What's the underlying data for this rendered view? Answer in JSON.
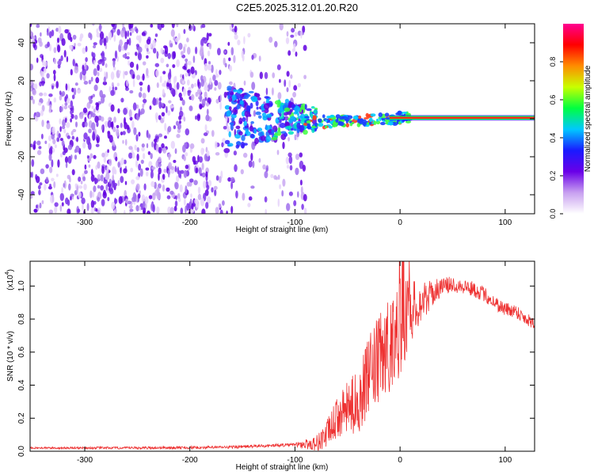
{
  "chart_data": [
    {
      "type": "heatmap",
      "title": "C2E5.2025.312.01.20.R20",
      "xlabel": "Height of straight line (km)",
      "ylabel": "Frequency (Hz)",
      "xlim": [
        -352,
        128
      ],
      "ylim": [
        -50,
        50
      ],
      "xticks": [
        -300,
        -200,
        -100,
        0,
        100
      ],
      "xtick_labels": [
        "-300",
        "-200",
        "-100",
        "0",
        "100"
      ],
      "yticks": [
        -40,
        -20,
        0,
        20,
        40
      ],
      "ytick_labels": [
        "-40",
        "-20",
        "0",
        "20",
        "40"
      ],
      "colorbar": {
        "label": "Normalized spectral amplitude",
        "range": [
          0,
          1
        ],
        "ticks": [
          0.0,
          0.2,
          0.4,
          0.6,
          0.8
        ],
        "tick_labels": [
          "0.0",
          "0.2",
          "0.4",
          "0.6",
          "0.8"
        ],
        "colors": [
          "#ffffff",
          "#c8a0f0",
          "#6a00e8",
          "#1a1aff",
          "#00c8ff",
          "#00ff40",
          "#c8ff00",
          "#ff8c00",
          "#ff0000",
          "#ff0090"
        ]
      },
      "features": {
        "noise_region_x": [
          -352,
          -90
        ],
        "spread_region_x": [
          -150,
          -80
        ],
        "carrier_line_from_x": -10,
        "carrier_frequency_hz": 0.5,
        "peak_color": "#ff3030",
        "line_colors": [
          "#ff2020",
          "#00ff40",
          "#0000ff"
        ]
      }
    },
    {
      "type": "line",
      "title": "",
      "xlabel": "Height of straight line (km)",
      "ylabel": "SNR (10 * v/v)",
      "scale_label": "(x10",
      "scale_exponent": "4",
      "xlim": [
        -352,
        128
      ],
      "ylim": [
        0,
        1.15
      ],
      "xticks": [
        -300,
        -200,
        -100,
        0,
        100
      ],
      "xtick_labels": [
        "-300",
        "-200",
        "-100",
        "0",
        "100"
      ],
      "yticks": [
        0.0,
        0.2,
        0.4,
        0.6,
        0.8,
        1.0
      ],
      "ytick_labels": [
        "0.0",
        "0.2",
        "0.4",
        "0.6",
        "0.8",
        "1.0"
      ],
      "series": [
        {
          "name": "SNR",
          "color": "#ee3333",
          "trend": [
            [
              -352,
              0.02
            ],
            [
              -300,
              0.02
            ],
            [
              -250,
              0.02
            ],
            [
              -200,
              0.022
            ],
            [
              -160,
              0.025
            ],
            [
              -140,
              0.03
            ],
            [
              -120,
              0.035
            ],
            [
              -100,
              0.04
            ],
            [
              -80,
              0.045
            ],
            [
              -70,
              0.1
            ],
            [
              -60,
              0.2
            ],
            [
              -50,
              0.26
            ],
            [
              -40,
              0.3
            ],
            [
              -30,
              0.45
            ],
            [
              -20,
              0.55
            ],
            [
              -10,
              0.65
            ],
            [
              0,
              0.75
            ],
            [
              10,
              0.85
            ],
            [
              20,
              0.9
            ],
            [
              30,
              0.95
            ],
            [
              40,
              1.0
            ],
            [
              50,
              1.01
            ],
            [
              60,
              1.0
            ],
            [
              70,
              0.98
            ],
            [
              80,
              0.95
            ],
            [
              90,
              0.9
            ],
            [
              100,
              0.86
            ],
            [
              110,
              0.85
            ],
            [
              120,
              0.8
            ],
            [
              128,
              0.78
            ]
          ],
          "noise_amplitude": [
            [
              -352,
              0.006
            ],
            [
              -100,
              0.01
            ],
            [
              -80,
              0.05
            ],
            [
              -60,
              0.12
            ],
            [
              -40,
              0.2
            ],
            [
              -20,
              0.28
            ],
            [
              0,
              0.3
            ],
            [
              10,
              0.2
            ],
            [
              20,
              0.12
            ],
            [
              40,
              0.05
            ],
            [
              128,
              0.04
            ]
          ]
        }
      ]
    }
  ]
}
